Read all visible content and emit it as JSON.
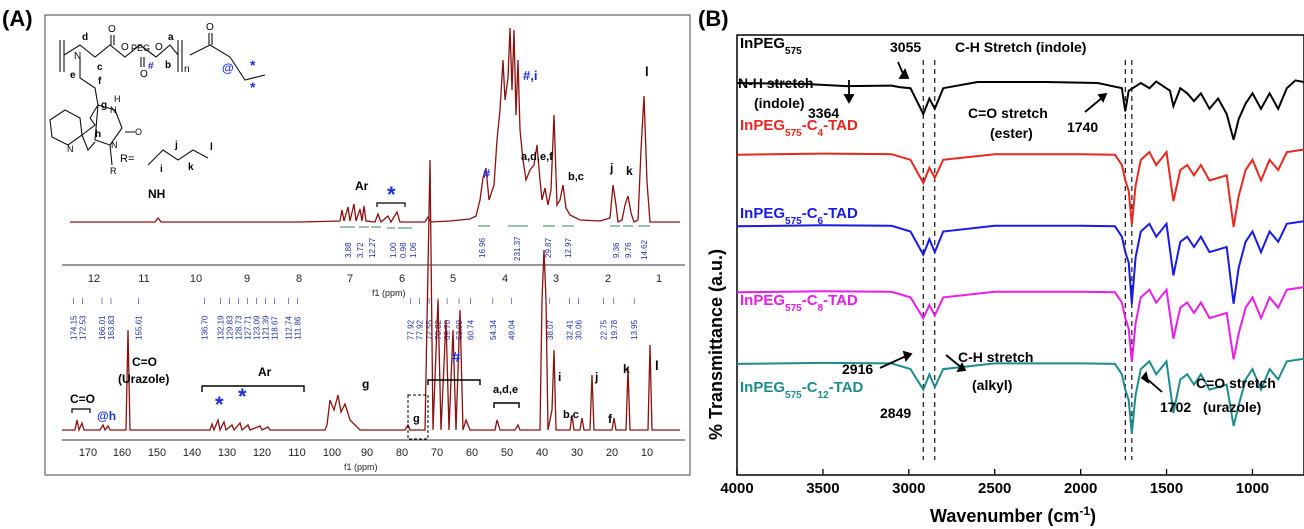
{
  "panels": {
    "a_label": "(A)",
    "b_label": "(B)"
  },
  "panel_a": {
    "h_nmr": {
      "axis_label": "f1 (ppm)",
      "ticks": [
        "12",
        "11",
        "10",
        "9",
        "8",
        "7",
        "6",
        "5",
        "4",
        "3",
        "2",
        "1"
      ],
      "peak_labels": {
        "nh": "NH",
        "ar": "Ar",
        "star": "*",
        "hash1": "#",
        "hashi": "#,i",
        "adef": "a,d,e,f",
        "bc": "b,c",
        "j": "j",
        "k": "k",
        "l": "l"
      },
      "integrals": [
        "3.88",
        "3.72",
        "12.27",
        "1.00",
        "0.98",
        "1.06",
        "16.96",
        "231.37",
        "29.87",
        "12.97",
        "9.36",
        "9.76",
        "14.62"
      ],
      "structure": {
        "r_label": "R=",
        "peg": "PEG",
        "n": "n",
        "letters": [
          "d",
          "a",
          "c",
          "b",
          "e",
          "f",
          "g",
          "h",
          "i",
          "j",
          "k",
          "l"
        ],
        "atoms": [
          "N",
          "O",
          "O",
          "O",
          "H",
          "N",
          "O",
          "N",
          "N",
          "R",
          "O",
          "O"
        ],
        "hash": "#",
        "at": "@",
        "stars": [
          "*",
          "*"
        ]
      }
    },
    "c_nmr": {
      "axis_label": "f1 (ppm)",
      "ticks": [
        "170",
        "160",
        "150",
        "140",
        "130",
        "120",
        "110",
        "100",
        "90",
        "80",
        "70",
        "60",
        "50",
        "40",
        "30",
        "20",
        "10"
      ],
      "shift_labels": [
        "174.15",
        "172.53",
        "166.01",
        "163.83",
        "155.61",
        "136.70",
        "132.19",
        "129.83",
        "128.73",
        "127.71",
        "123.09",
        "121.39",
        "118.67",
        "112.74",
        "111.86",
        "77.92",
        "77.92",
        "72.55",
        "70.62",
        "69.70",
        "63.99",
        "60.74",
        "54.34",
        "49.04",
        "38.07",
        "32.41",
        "30.06",
        "22.75",
        "19.78",
        "13.95"
      ],
      "peak_labels": {
        "co": "C=O",
        "co_urazole_1": "C=O",
        "co_urazole_2": "(Urazole)",
        "at_h": "@h",
        "ar": "Ar",
        "star1": "*",
        "star2": "*",
        "g1": "g",
        "g2": "g",
        "hash": "#",
        "ade": "a,d,e",
        "i": "i",
        "j": "j",
        "bc": "b,c",
        "f": "f",
        "k": "k",
        "l": "l"
      }
    }
  },
  "chart_data": [
    {
      "type": "line",
      "panel": "B",
      "xlabel": "Wavenumber (cm",
      "xlabel_sup": "-1",
      "xlabel_end": ")",
      "ylabel": "% Transmittance (a.u.)",
      "xlim": [
        4000,
        700
      ],
      "x_reversed": true,
      "xticks": [
        4000,
        3500,
        3000,
        2500,
        2000,
        1500,
        1000
      ],
      "grid": false,
      "reference_lines_cm1": [
        2916,
        2849,
        1740,
        1702
      ],
      "series": [
        {
          "base": "InPEG",
          "sub": "575",
          "suffix": "",
          "color": "#000000",
          "offset": 0.9,
          "points": [
            [
              4000,
              0
            ],
            [
              3600,
              -0.02
            ],
            [
              3364,
              -0.06
            ],
            [
              3100,
              -0.05
            ],
            [
              3055,
              -0.08
            ],
            [
              2990,
              -0.1
            ],
            [
              2916,
              -0.6
            ],
            [
              2880,
              -0.3
            ],
            [
              2849,
              -0.5
            ],
            [
              2800,
              -0.1
            ],
            [
              2600,
              0.02
            ],
            [
              2200,
              0.02
            ],
            [
              1900,
              0
            ],
            [
              1760,
              -0.1
            ],
            [
              1740,
              -0.55
            ],
            [
              1720,
              -0.15
            ],
            [
              1650,
              0
            ],
            [
              1600,
              -0.1
            ],
            [
              1560,
              0.03
            ],
            [
              1480,
              -0.15
            ],
            [
              1460,
              -0.45
            ],
            [
              1420,
              -0.1
            ],
            [
              1380,
              -0.2
            ],
            [
              1340,
              -0.35
            ],
            [
              1300,
              -0.2
            ],
            [
              1250,
              -0.5
            ],
            [
              1200,
              -0.3
            ],
            [
              1150,
              -0.6
            ],
            [
              1110,
              -1.1
            ],
            [
              1080,
              -0.7
            ],
            [
              1040,
              -0.4
            ],
            [
              1000,
              -0.2
            ],
            [
              950,
              -0.5
            ],
            [
              900,
              -0.2
            ],
            [
              850,
              -0.5
            ],
            [
              800,
              -0.1
            ],
            [
              750,
              0.05
            ],
            [
              700,
              0.02
            ]
          ]
        },
        {
          "base": "InPEG",
          "sub": "575",
          "suffix": "-C4-TAD",
          "sub2": "4",
          "color": "#e8281f",
          "offset": 0.65,
          "points": [
            [
              4000,
              0
            ],
            [
              3500,
              0.02
            ],
            [
              3100,
              0.01
            ],
            [
              2990,
              -0.1
            ],
            [
              2916,
              -0.55
            ],
            [
              2880,
              -0.25
            ],
            [
              2849,
              -0.45
            ],
            [
              2800,
              -0.1
            ],
            [
              2500,
              0.01
            ],
            [
              2000,
              0.01
            ],
            [
              1800,
              0
            ],
            [
              1760,
              -0.2
            ],
            [
              1740,
              -0.5
            ],
            [
              1720,
              -0.7
            ],
            [
              1702,
              -1.35
            ],
            [
              1680,
              -0.6
            ],
            [
              1650,
              -0.1
            ],
            [
              1600,
              0.05
            ],
            [
              1560,
              -0.2
            ],
            [
              1500,
              0.05
            ],
            [
              1460,
              -0.9
            ],
            [
              1420,
              -0.3
            ],
            [
              1380,
              -0.2
            ],
            [
              1340,
              -0.4
            ],
            [
              1300,
              -0.2
            ],
            [
              1250,
              -0.5
            ],
            [
              1150,
              -0.4
            ],
            [
              1110,
              -1.4
            ],
            [
              1080,
              -0.8
            ],
            [
              1040,
              -0.3
            ],
            [
              1000,
              -0.1
            ],
            [
              950,
              -0.5
            ],
            [
              900,
              -0.1
            ],
            [
              850,
              -0.3
            ],
            [
              800,
              0.05
            ],
            [
              700,
              0.1
            ]
          ]
        },
        {
          "base": "InPEG",
          "sub": "575",
          "suffix": "-C6-TAD",
          "sub2": "6",
          "color": "#1a1ae6",
          "offset": 0.4,
          "points": [
            [
              4000,
              0
            ],
            [
              3500,
              0.02
            ],
            [
              3100,
              0.01
            ],
            [
              2990,
              -0.1
            ],
            [
              2916,
              -0.55
            ],
            [
              2880,
              -0.25
            ],
            [
              2849,
              -0.5
            ],
            [
              2800,
              -0.1
            ],
            [
              2500,
              0.01
            ],
            [
              2000,
              0.01
            ],
            [
              1800,
              0
            ],
            [
              1760,
              -0.2
            ],
            [
              1740,
              -0.5
            ],
            [
              1720,
              -0.7
            ],
            [
              1702,
              -1.5
            ],
            [
              1680,
              -0.6
            ],
            [
              1650,
              -0.1
            ],
            [
              1600,
              0.05
            ],
            [
              1560,
              -0.2
            ],
            [
              1500,
              0.05
            ],
            [
              1460,
              -0.95
            ],
            [
              1420,
              -0.3
            ],
            [
              1380,
              -0.2
            ],
            [
              1340,
              -0.4
            ],
            [
              1300,
              -0.2
            ],
            [
              1250,
              -0.5
            ],
            [
              1150,
              -0.4
            ],
            [
              1110,
              -1.5
            ],
            [
              1080,
              -0.8
            ],
            [
              1040,
              -0.3
            ],
            [
              1000,
              -0.1
            ],
            [
              950,
              -0.5
            ],
            [
              900,
              -0.1
            ],
            [
              850,
              -0.3
            ],
            [
              800,
              0.05
            ],
            [
              700,
              0.1
            ]
          ]
        },
        {
          "base": "InPEG",
          "sub": "575",
          "suffix": "-C8-TAD",
          "sub2": "8",
          "color": "#e81ee8",
          "offset": 0.17,
          "points": [
            [
              4000,
              0
            ],
            [
              3500,
              0.02
            ],
            [
              3100,
              0.01
            ],
            [
              2990,
              -0.1
            ],
            [
              2916,
              -0.5
            ],
            [
              2880,
              -0.25
            ],
            [
              2849,
              -0.45
            ],
            [
              2800,
              -0.1
            ],
            [
              2500,
              0.01
            ],
            [
              2000,
              0.01
            ],
            [
              1800,
              0
            ],
            [
              1760,
              -0.2
            ],
            [
              1740,
              -0.5
            ],
            [
              1720,
              -0.7
            ],
            [
              1702,
              -1.35
            ],
            [
              1680,
              -0.6
            ],
            [
              1650,
              -0.1
            ],
            [
              1600,
              0.05
            ],
            [
              1560,
              -0.2
            ],
            [
              1500,
              0.05
            ],
            [
              1460,
              -0.9
            ],
            [
              1420,
              -0.3
            ],
            [
              1380,
              -0.2
            ],
            [
              1340,
              -0.4
            ],
            [
              1300,
              -0.2
            ],
            [
              1250,
              -0.5
            ],
            [
              1150,
              -0.4
            ],
            [
              1110,
              -1.3
            ],
            [
              1080,
              -0.8
            ],
            [
              1040,
              -0.3
            ],
            [
              1000,
              -0.1
            ],
            [
              950,
              -0.5
            ],
            [
              900,
              -0.1
            ],
            [
              850,
              -0.3
            ],
            [
              800,
              0.05
            ],
            [
              700,
              0.1
            ]
          ]
        },
        {
          "base": "InPEG",
          "sub": "575",
          "suffix": "-C12-TAD",
          "sub2": "12",
          "color": "#1e8c8c",
          "offset": -0.08,
          "points": [
            [
              4000,
              0
            ],
            [
              3500,
              0.02
            ],
            [
              3100,
              0.01
            ],
            [
              2990,
              -0.1
            ],
            [
              2916,
              -0.5
            ],
            [
              2880,
              -0.2
            ],
            [
              2849,
              -0.45
            ],
            [
              2800,
              -0.1
            ],
            [
              2500,
              0.01
            ],
            [
              2000,
              0.01
            ],
            [
              1800,
              0
            ],
            [
              1760,
              -0.2
            ],
            [
              1740,
              -0.5
            ],
            [
              1720,
              -0.7
            ],
            [
              1702,
              -1.35
            ],
            [
              1680,
              -0.6
            ],
            [
              1650,
              -0.1
            ],
            [
              1600,
              0.05
            ],
            [
              1560,
              -0.2
            ],
            [
              1500,
              0.05
            ],
            [
              1460,
              -0.95
            ],
            [
              1420,
              -0.3
            ],
            [
              1380,
              -0.2
            ],
            [
              1340,
              -0.4
            ],
            [
              1300,
              -0.2
            ],
            [
              1250,
              -0.5
            ],
            [
              1150,
              -0.4
            ],
            [
              1110,
              -1.2
            ],
            [
              1080,
              -0.8
            ],
            [
              1040,
              -0.3
            ],
            [
              1000,
              -0.1
            ],
            [
              950,
              -0.5
            ],
            [
              900,
              -0.1
            ],
            [
              850,
              -0.3
            ],
            [
              800,
              0.05
            ],
            [
              700,
              0.1
            ]
          ]
        }
      ],
      "annotations": {
        "a3055": "3055",
        "ch_indole": "C-H Stretch (indole)",
        "nh1": "N-H stretch",
        "nh2": "(indole)",
        "a3364": "3364",
        "co_ester1": "C=O stretch",
        "co_ester2": "(ester)",
        "a1740": "1740",
        "a2916": "2916",
        "a2849": "2849",
        "ch_alkyl1": "C-H stretch",
        "ch_alkyl2": "(alkyl)",
        "co_ur1": "C=O stretch",
        "a1702": "1702",
        "co_ur2": "(urazole)"
      }
    }
  ]
}
